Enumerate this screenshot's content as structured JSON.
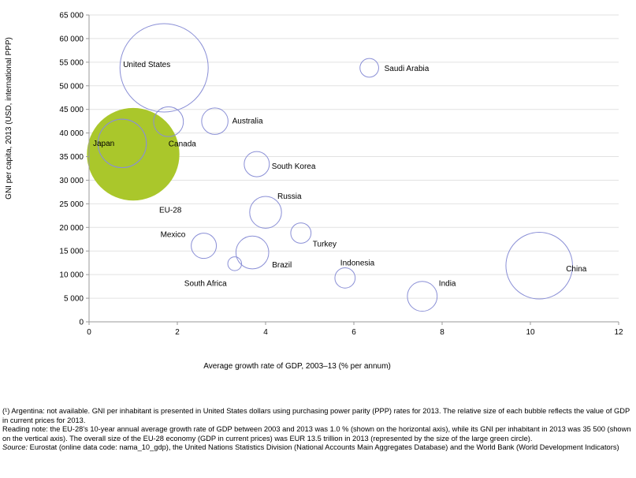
{
  "chart_data": {
    "type": "bubble",
    "xlabel": "Average growth rate of GDP, 2003–13 (% per annum)",
    "ylabel": "GNI per capita, 2013 (USD, international PPP)",
    "xlim": [
      0,
      12
    ],
    "ylim": [
      0,
      65000
    ],
    "xticks": [
      0,
      2,
      4,
      6,
      8,
      10,
      12
    ],
    "yticks": [
      0,
      5000,
      10000,
      15000,
      20000,
      25000,
      30000,
      35000,
      40000,
      45000,
      50000,
      55000,
      60000,
      65000
    ],
    "ytick_labels": [
      "0",
      "5 000",
      "10 000",
      "15 000",
      "20 000",
      "25 000",
      "30 000",
      "35 000",
      "40 000",
      "45 000",
      "50 000",
      "55 000",
      "60 000",
      "65 000"
    ],
    "grid": "horizontal",
    "bubble_size_note": "GDP in current prices, 2013",
    "points": [
      {
        "label": "United States",
        "x": 1.7,
        "y": 53800,
        "size": 12.3,
        "highlight": false
      },
      {
        "label": "EU-28",
        "x": 1.0,
        "y": 35500,
        "size": 13.5,
        "highlight": true,
        "color": "#aac72b"
      },
      {
        "label": "Japan",
        "x": 0.75,
        "y": 37800,
        "size": 3.7,
        "highlight": false
      },
      {
        "label": "Canada",
        "x": 1.8,
        "y": 42400,
        "size": 1.4,
        "highlight": false
      },
      {
        "label": "Australia",
        "x": 2.85,
        "y": 42500,
        "size": 1.1,
        "highlight": false
      },
      {
        "label": "Saudi Arabia",
        "x": 6.35,
        "y": 53800,
        "size": 0.55,
        "highlight": false
      },
      {
        "label": "South Korea",
        "x": 3.8,
        "y": 33400,
        "size": 1.0,
        "highlight": false
      },
      {
        "label": "Russia",
        "x": 4.0,
        "y": 23200,
        "size": 1.6,
        "highlight": false
      },
      {
        "label": "Turkey",
        "x": 4.8,
        "y": 18800,
        "size": 0.65,
        "highlight": false
      },
      {
        "label": "Mexico",
        "x": 2.6,
        "y": 16100,
        "size": 1.0,
        "highlight": false
      },
      {
        "label": "Brazil",
        "x": 3.7,
        "y": 14700,
        "size": 1.7,
        "highlight": false
      },
      {
        "label": "South Africa",
        "x": 3.3,
        "y": 12300,
        "size": 0.3,
        "highlight": false
      },
      {
        "label": "Indonesia",
        "x": 5.8,
        "y": 9300,
        "size": 0.65,
        "highlight": false
      },
      {
        "label": "India",
        "x": 7.55,
        "y": 5400,
        "size": 1.4,
        "highlight": false
      },
      {
        "label": "China",
        "x": 10.2,
        "y": 11900,
        "size": 7.0,
        "highlight": false
      }
    ],
    "bubble_stroke": "#8a8fd6",
    "highlight_color": "#aac72b"
  },
  "notes": {
    "line1": "(¹) Argentina: not available. GNI per inhabitant is presented in United States dollars using purchasing power parity (PPP) rates for 2013. The relative size of each bubble reflects the value of GDP in current prices for 2013.",
    "line2": "Reading note: the EU-28's 10-year annual average growth rate of GDP between 2003 and 2013 was 1.0 % (shown on the horizontal axis), while its GNI per inhabitant in 2013 was 35 500 (shown on the vertical axis).  The overall size of the EU-28 economy (GDP in current prices) was EUR 13.5 trillion in 2013 (represented by the size of the large green circle).",
    "source_label": "Source:",
    "source_text": " Eurostat (online data code: nama_10_gdp), the United Nations Statistics Division (National Accounts Main Aggregates Database) and the World Bank (World Development Indicators)"
  }
}
